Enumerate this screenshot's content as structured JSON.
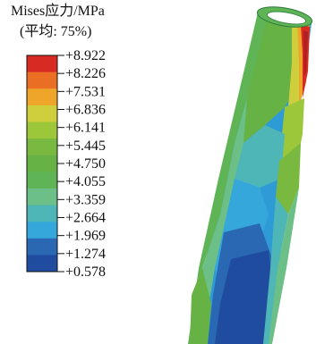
{
  "legend": {
    "title": "Mises应力/MPa",
    "subtitle": "(平均: 75%)",
    "labels": [
      "+8.922",
      "+8.226",
      "+7.531",
      "+6.836",
      "+6.141",
      "+5.445",
      "+4.750",
      "+4.055",
      "+3.359",
      "+2.664",
      "+1.969",
      "+1.274",
      "+0.578"
    ],
    "colors": [
      "#d62a23",
      "#ea6f24",
      "#eea52a",
      "#cfcf3d",
      "#9dc73a",
      "#7ab93f",
      "#67b244",
      "#5fb456",
      "#6cbf86",
      "#4eb6b7",
      "#35a7db",
      "#2a68b3",
      "#1f4c9f"
    ]
  }
}
